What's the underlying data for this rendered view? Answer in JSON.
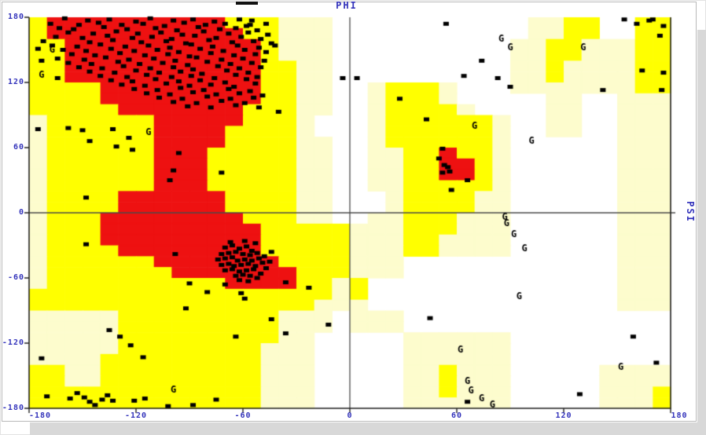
{
  "colors": {
    "core_region": "#ee1111",
    "allowed_region": "#ffff00",
    "generous_region": "#fdfccd",
    "disallowed_region": "#ffffff",
    "axis_label_blue": "#3333bb",
    "point_black": "#000000",
    "axis_line": "#222222",
    "center_line": "#4a4a4a",
    "shadow_gray": "#d8d8d8",
    "top_mark": "#111111"
  },
  "chart_data": {
    "type": "scatter",
    "xlabel": "PHI",
    "ylabel": "PSI",
    "xlim": [
      -180,
      180
    ],
    "ylim": [
      -180,
      180
    ],
    "x_ticks": [
      -180,
      -120,
      -60,
      0,
      60,
      120,
      180
    ],
    "y_ticks": [
      180,
      120,
      60,
      0,
      -60,
      -120,
      -180
    ],
    "point_marker": "filled-black-square",
    "glycine_marker": "G",
    "region_map": {
      "cell_degrees": 10,
      "codes": {
        "r": "core",
        "y": "allowed",
        "c": "generous",
        "w": "disallowed"
      },
      "rows": [
        "yrrrrrrrrrryyycccwwwwwwwwwwwccyywwyy",
        "yrrrrrrrrrrryycccwwwwwwwwwwwccyywwyy",
        "yyrrrrrrrrrrrycccwwwwwwwwwwccyycccyy",
        "yyrrrrrrrrrrrycccwwwwwwwwwwccyycccyy",
        "yyrrrrrrrrrrryyccwwwwwwwwwwccyccccyy",
        "yyrrrrrrrrrrryyccwwwwwwwwwwccyccccyy",
        "yyyyrrrrrrrrryyccwwcyyycwwwcccccccyy",
        "yyyyrrrrrrrrryyccwwcyyycwwwwwccwwccc",
        "yyyyyrrrrrrryyyccwwcyyyycwwwwccwwccc",
        "cyyyyyyrrrrryyycwwwcyyyyyycwwccwwccc",
        "cyyyyyyrrrryyyycwwwcyyyyyycwwccwwccc",
        "cyyyyyyrrrryyyyccwwcyyyyyycwwwwwwccc",
        "cyyyyyyrrryyyyyccwwccyyryycwwwwwwccc",
        "cyyyyyyrrryyyyyccwwccyyrrycwwwwwwccc",
        "cyyyyyyrrryyyyyccwwccyyrrycwwwwwwccc",
        "cyyyyyyrrryyyyyccwwccyyyyycwwwwwwccc",
        "cyyyyrrrrrryyyyccwwwcyyyyccwwwwwwccc",
        "cyyyyrrrrrryyyyccwwwcyyyyccwwwwwwccc",
        "cyyyrrrrrrrryyyccwwccyyycccwwwwwwccc",
        "cyyyrrrrrrrrryyyyycccyyycccwwwwwwccc",
        "cyyyrrrrrrrrryyyyycccyyccccwwwwwwccc",
        "cyyyyrrrrrrrryyyyycccyyccccwwwwwwccc",
        "cyyyyyyrrrrrrryyyycccwwwwwwwwwwwwccc",
        "cyyyyyyyrrrrrrryyycccwwwwwwwwwwwwccc",
        "cyyyyyyyyyyrrrryycywwwwwwwwwwwwwwccc",
        "yyyyyyyyyyyyyyyyycywwwwwwwwwwwwwwccc",
        "yyyyyyyyyyyyyyyycccwwwwwwwwwwwwwwccc",
        "cccccyyyyyyyyycccwcccwwwwwwwwwwwwwww",
        "cccccyyyyyyyyycccwcccwwwwwwwwwwwwwww",
        "cccccyyyyyyyyyccwwwwwccccccwwwwwwwww",
        "cccccyyyyyyyycccwwwwwccccccwwwwwwwww",
        "ccccyyyyyyyyycccwwwwwccccccwwwwwwwww",
        "yyccyyyyyyyyycccwwwwwccycccwwwwwcccc",
        "yyccyyyyyyyyycccwwwwwccycccwwwwwcccc",
        "yyyyyyyyyyyyycccwwwwwccycccwwwwwcccy",
        "yyyyyyyyyyyyycccwwwwwccccccwwwwwcccy"
      ]
    },
    "points": [
      [
        -160,
        179
      ],
      [
        -147,
        177
      ],
      [
        -135,
        178
      ],
      [
        -120,
        176
      ],
      [
        -112,
        179
      ],
      [
        -99,
        177
      ],
      [
        -88,
        178
      ],
      [
        -76,
        176
      ],
      [
        -62,
        178
      ],
      [
        -55,
        177
      ],
      [
        -168,
        174
      ],
      [
        -152,
        173
      ],
      [
        -141,
        175
      ],
      [
        -128,
        173
      ],
      [
        -116,
        174
      ],
      [
        -104,
        172
      ],
      [
        -93,
        175
      ],
      [
        -81,
        173
      ],
      [
        -70,
        174
      ],
      [
        -58,
        172
      ],
      [
        -47,
        174
      ],
      [
        -163,
        170
      ],
      [
        -155,
        169
      ],
      [
        -138,
        171
      ],
      [
        -125,
        169
      ],
      [
        -109,
        170
      ],
      [
        -97,
        168
      ],
      [
        -85,
        171
      ],
      [
        -73,
        169
      ],
      [
        -64,
        170
      ],
      [
        -52,
        168
      ],
      [
        -158,
        166
      ],
      [
        -144,
        165
      ],
      [
        -131,
        167
      ],
      [
        -119,
        165
      ],
      [
        -106,
        166
      ],
      [
        -94,
        164
      ],
      [
        -82,
        167
      ],
      [
        -68,
        165
      ],
      [
        -57,
        166
      ],
      [
        -46,
        164
      ],
      [
        -165,
        162
      ],
      [
        -150,
        161
      ],
      [
        -136,
        163
      ],
      [
        -122,
        161
      ],
      [
        -111,
        162
      ],
      [
        -100,
        160
      ],
      [
        -87,
        163
      ],
      [
        -75,
        161
      ],
      [
        -61,
        162
      ],
      [
        -50,
        160
      ],
      [
        -172,
        158
      ],
      [
        -146,
        157
      ],
      [
        -133,
        159
      ],
      [
        -117,
        157
      ],
      [
        -103,
        158
      ],
      [
        -92,
        156
      ],
      [
        -79,
        159
      ],
      [
        -66,
        157
      ],
      [
        -54,
        158
      ],
      [
        -44,
        156
      ],
      [
        -167,
        154
      ],
      [
        -153,
        153
      ],
      [
        -140,
        155
      ],
      [
        -126,
        153
      ],
      [
        -113,
        154
      ],
      [
        -101,
        152
      ],
      [
        -89,
        155
      ],
      [
        -77,
        153
      ],
      [
        -63,
        154
      ],
      [
        -51,
        152
      ],
      [
        -161,
        150
      ],
      [
        -148,
        149
      ],
      [
        -134,
        151
      ],
      [
        -121,
        149
      ],
      [
        -108,
        150
      ],
      [
        -96,
        148
      ],
      [
        -84,
        151
      ],
      [
        -71,
        149
      ],
      [
        -59,
        150
      ],
      [
        -47,
        148
      ],
      [
        -156,
        146
      ],
      [
        -143,
        145
      ],
      [
        -129,
        147
      ],
      [
        -115,
        145
      ],
      [
        -102,
        146
      ],
      [
        -90,
        144
      ],
      [
        -78,
        147
      ],
      [
        -65,
        145
      ],
      [
        -53,
        146
      ],
      [
        -164,
        142
      ],
      [
        -149,
        141
      ],
      [
        -137,
        143
      ],
      [
        -124,
        141
      ],
      [
        -110,
        142
      ],
      [
        -98,
        140
      ],
      [
        -86,
        143
      ],
      [
        -72,
        141
      ],
      [
        -60,
        142
      ],
      [
        -48,
        140
      ],
      [
        -158,
        138
      ],
      [
        -145,
        137
      ],
      [
        -130,
        139
      ],
      [
        -118,
        137
      ],
      [
        -105,
        138
      ],
      [
        -91,
        136
      ],
      [
        -80,
        139
      ],
      [
        -67,
        137
      ],
      [
        -55,
        138
      ],
      [
        -152,
        134
      ],
      [
        -139,
        133
      ],
      [
        -127,
        135
      ],
      [
        -112,
        133
      ],
      [
        -99,
        134
      ],
      [
        -88,
        132
      ],
      [
        -74,
        135
      ],
      [
        -62,
        133
      ],
      [
        -50,
        134
      ],
      [
        -146,
        130
      ],
      [
        -132,
        129
      ],
      [
        -120,
        131
      ],
      [
        -107,
        129
      ],
      [
        -95,
        130
      ],
      [
        -83,
        128
      ],
      [
        -69,
        131
      ],
      [
        -57,
        129
      ],
      [
        -140,
        126
      ],
      [
        -125,
        125
      ],
      [
        -114,
        127
      ],
      [
        -100,
        125
      ],
      [
        -89,
        126
      ],
      [
        -76,
        124
      ],
      [
        -64,
        127
      ],
      [
        -52,
        125
      ],
      [
        -134,
        122
      ],
      [
        -122,
        121
      ],
      [
        -109,
        123
      ],
      [
        -96,
        121
      ],
      [
        -84,
        122
      ],
      [
        -70,
        120
      ],
      [
        -58,
        123
      ],
      [
        -128,
        118
      ],
      [
        -115,
        117
      ],
      [
        -103,
        119
      ],
      [
        -90,
        117
      ],
      [
        -78,
        118
      ],
      [
        -65,
        116
      ],
      [
        -53,
        119
      ],
      [
        -121,
        114
      ],
      [
        -108,
        113
      ],
      [
        -95,
        115
      ],
      [
        -82,
        113
      ],
      [
        -68,
        114
      ],
      [
        -56,
        112
      ],
      [
        -114,
        110
      ],
      [
        -101,
        109
      ],
      [
        -88,
        111
      ],
      [
        -75,
        109
      ],
      [
        -62,
        110
      ],
      [
        -49,
        108
      ],
      [
        -107,
        106
      ],
      [
        -94,
        105
      ],
      [
        -80,
        107
      ],
      [
        -67,
        105
      ],
      [
        -54,
        106
      ],
      [
        -99,
        102
      ],
      [
        -86,
        101
      ],
      [
        -72,
        103
      ],
      [
        -59,
        101
      ],
      [
        -91,
        98
      ],
      [
        -78,
        97
      ],
      [
        -64,
        99
      ],
      [
        -51,
        97
      ],
      [
        -70,
        -32
      ],
      [
        -66,
        -30
      ],
      [
        -62,
        -33
      ],
      [
        -58,
        -31
      ],
      [
        -55,
        -35
      ],
      [
        -72,
        -38
      ],
      [
        -68,
        -37
      ],
      [
        -64,
        -36
      ],
      [
        -60,
        -38
      ],
      [
        -56,
        -39
      ],
      [
        -52,
        -37
      ],
      [
        -74,
        -43
      ],
      [
        -70,
        -42
      ],
      [
        -66,
        -41
      ],
      [
        -63,
        -44
      ],
      [
        -59,
        -43
      ],
      [
        -55,
        -44
      ],
      [
        -51,
        -42
      ],
      [
        -72,
        -48
      ],
      [
        -68,
        -47
      ],
      [
        -65,
        -49
      ],
      [
        -61,
        -48
      ],
      [
        -57,
        -47
      ],
      [
        -53,
        -49
      ],
      [
        -49,
        -46
      ],
      [
        -70,
        -53
      ],
      [
        -66,
        -52
      ],
      [
        -62,
        -54
      ],
      [
        -58,
        -53
      ],
      [
        -54,
        -52
      ],
      [
        -64,
        -58
      ],
      [
        -60,
        -57
      ],
      [
        -56,
        -58
      ],
      [
        -67,
        -27
      ],
      [
        -59,
        -26
      ],
      [
        -53,
        -28
      ],
      [
        -48,
        -40
      ],
      [
        -47,
        -51
      ],
      [
        -50,
        -56
      ],
      [
        -62,
        -62
      ],
      [
        -57,
        -63
      ],
      [
        -52,
        -60
      ],
      [
        -45,
        -45
      ],
      [
        -44,
        -36
      ],
      [
        -175,
        151
      ],
      [
        -173,
        140
      ],
      [
        -164,
        124
      ],
      [
        -175,
        77
      ],
      [
        -158,
        78
      ],
      [
        -150,
        76
      ],
      [
        -133,
        77
      ],
      [
        -146,
        66
      ],
      [
        -131,
        61
      ],
      [
        -124,
        69
      ],
      [
        -122,
        58
      ],
      [
        -96,
        55
      ],
      [
        -99,
        39
      ],
      [
        -101,
        30
      ],
      [
        -72,
        37
      ],
      [
        -148,
        14
      ],
      [
        -148,
        -29
      ],
      [
        -98,
        -38
      ],
      [
        -92,
        -88
      ],
      [
        -90,
        -65
      ],
      [
        -80,
        -73
      ],
      [
        -70,
        -66
      ],
      [
        -61,
        -74
      ],
      [
        -59,
        -79
      ],
      [
        -36,
        -64
      ],
      [
        -23,
        -69
      ],
      [
        -44,
        -98
      ],
      [
        -36,
        -111
      ],
      [
        -12,
        -103
      ],
      [
        -64,
        -114
      ],
      [
        -135,
        -108
      ],
      [
        -129,
        -114
      ],
      [
        -123,
        -122
      ],
      [
        -116,
        -133
      ],
      [
        -173,
        -134
      ],
      [
        -170,
        -169
      ],
      [
        -157,
        -171
      ],
      [
        -153,
        -166
      ],
      [
        -149,
        -170
      ],
      [
        -146,
        -174
      ],
      [
        -143,
        -177
      ],
      [
        -139,
        -172
      ],
      [
        -136,
        -168
      ],
      [
        -133,
        -173
      ],
      [
        -121,
        -173
      ],
      [
        -115,
        -171
      ],
      [
        -102,
        -178
      ],
      [
        -88,
        -177
      ],
      [
        -75,
        -172
      ],
      [
        -56,
        173
      ],
      [
        -42,
        154
      ],
      [
        -40,
        93
      ],
      [
        -4,
        124
      ],
      [
        4,
        124
      ],
      [
        28,
        105
      ],
      [
        54,
        174
      ],
      [
        64,
        126
      ],
      [
        74,
        140
      ],
      [
        83,
        124
      ],
      [
        90,
        116
      ],
      [
        142,
        113
      ],
      [
        164,
        131
      ],
      [
        175,
        113
      ],
      [
        176,
        129
      ],
      [
        154,
        178
      ],
      [
        161,
        174
      ],
      [
        168,
        177
      ],
      [
        174,
        163
      ],
      [
        170,
        178
      ],
      [
        176,
        172
      ],
      [
        43,
        86
      ],
      [
        52,
        59
      ],
      [
        50,
        50
      ],
      [
        53,
        44
      ],
      [
        55,
        42
      ],
      [
        52,
        37
      ],
      [
        56,
        38
      ],
      [
        66,
        30
      ],
      [
        57,
        21
      ],
      [
        45,
        -97
      ],
      [
        159,
        -114
      ],
      [
        172,
        -138
      ],
      [
        129,
        -167
      ],
      [
        66,
        -174
      ]
    ],
    "glycine_points": [
      [
        -167,
        150
      ],
      [
        -173,
        127
      ],
      [
        -113,
        74
      ],
      [
        85,
        160
      ],
      [
        90,
        152
      ],
      [
        131,
        152
      ],
      [
        70,
        80
      ],
      [
        102,
        66
      ],
      [
        87,
        -4
      ],
      [
        88,
        -10
      ],
      [
        92,
        -20
      ],
      [
        98,
        -33
      ],
      [
        95,
        -77
      ],
      [
        62,
        -126
      ],
      [
        152,
        -142
      ],
      [
        -99,
        -163
      ],
      [
        66,
        -155
      ],
      [
        68,
        -164
      ],
      [
        74,
        -171
      ],
      [
        80,
        -177
      ]
    ]
  }
}
